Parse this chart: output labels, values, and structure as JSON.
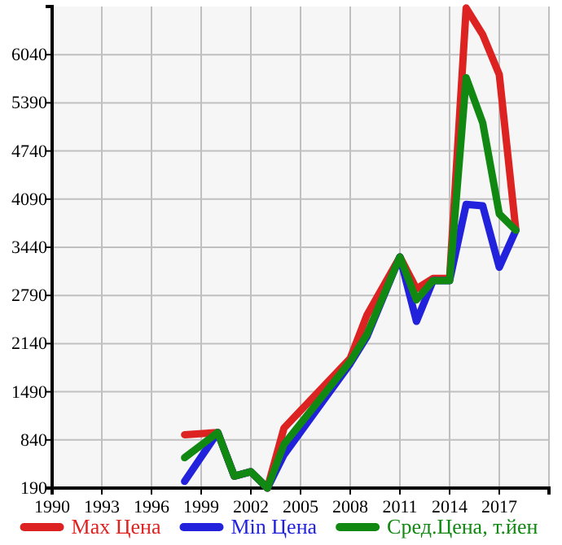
{
  "chart_data": {
    "type": "line",
    "x": [
      1998,
      2000,
      2001,
      2002,
      2003,
      2004,
      2008,
      2009,
      2011,
      2012,
      2013,
      2014,
      2015,
      2016,
      2017,
      2018
    ],
    "series": [
      {
        "name": "Max Цена",
        "color": "#dd2222",
        "values": [
          910,
          940,
          350,
          410,
          190,
          1000,
          1940,
          2520,
          3310,
          2880,
          3020,
          3020,
          6670,
          6310,
          5770,
          3670
        ]
      },
      {
        "name": "Min Цена",
        "color": "#2222dd",
        "values": [
          280,
          940,
          350,
          410,
          190,
          640,
          1870,
          2230,
          3310,
          2440,
          2990,
          2990,
          4020,
          4000,
          3170,
          3670
        ]
      },
      {
        "name": "Сред.Цена, т.йен",
        "color": "#118811",
        "values": [
          600,
          940,
          350,
          410,
          190,
          780,
          1900,
          2260,
          3310,
          2730,
          2990,
          2990,
          5730,
          5120,
          3890,
          3670
        ]
      }
    ],
    "xlim": [
      1990,
      2020
    ],
    "xticks": [
      1990,
      1993,
      1996,
      1999,
      2002,
      2005,
      2008,
      2011,
      2014,
      2017
    ],
    "ylim": [
      190,
      6690
    ],
    "yticks": [
      190,
      840,
      1490,
      2140,
      2790,
      3440,
      4090,
      4740,
      5390,
      6040
    ],
    "grid": true,
    "legend": "bottom",
    "marker": "none",
    "line_style": "solid"
  }
}
